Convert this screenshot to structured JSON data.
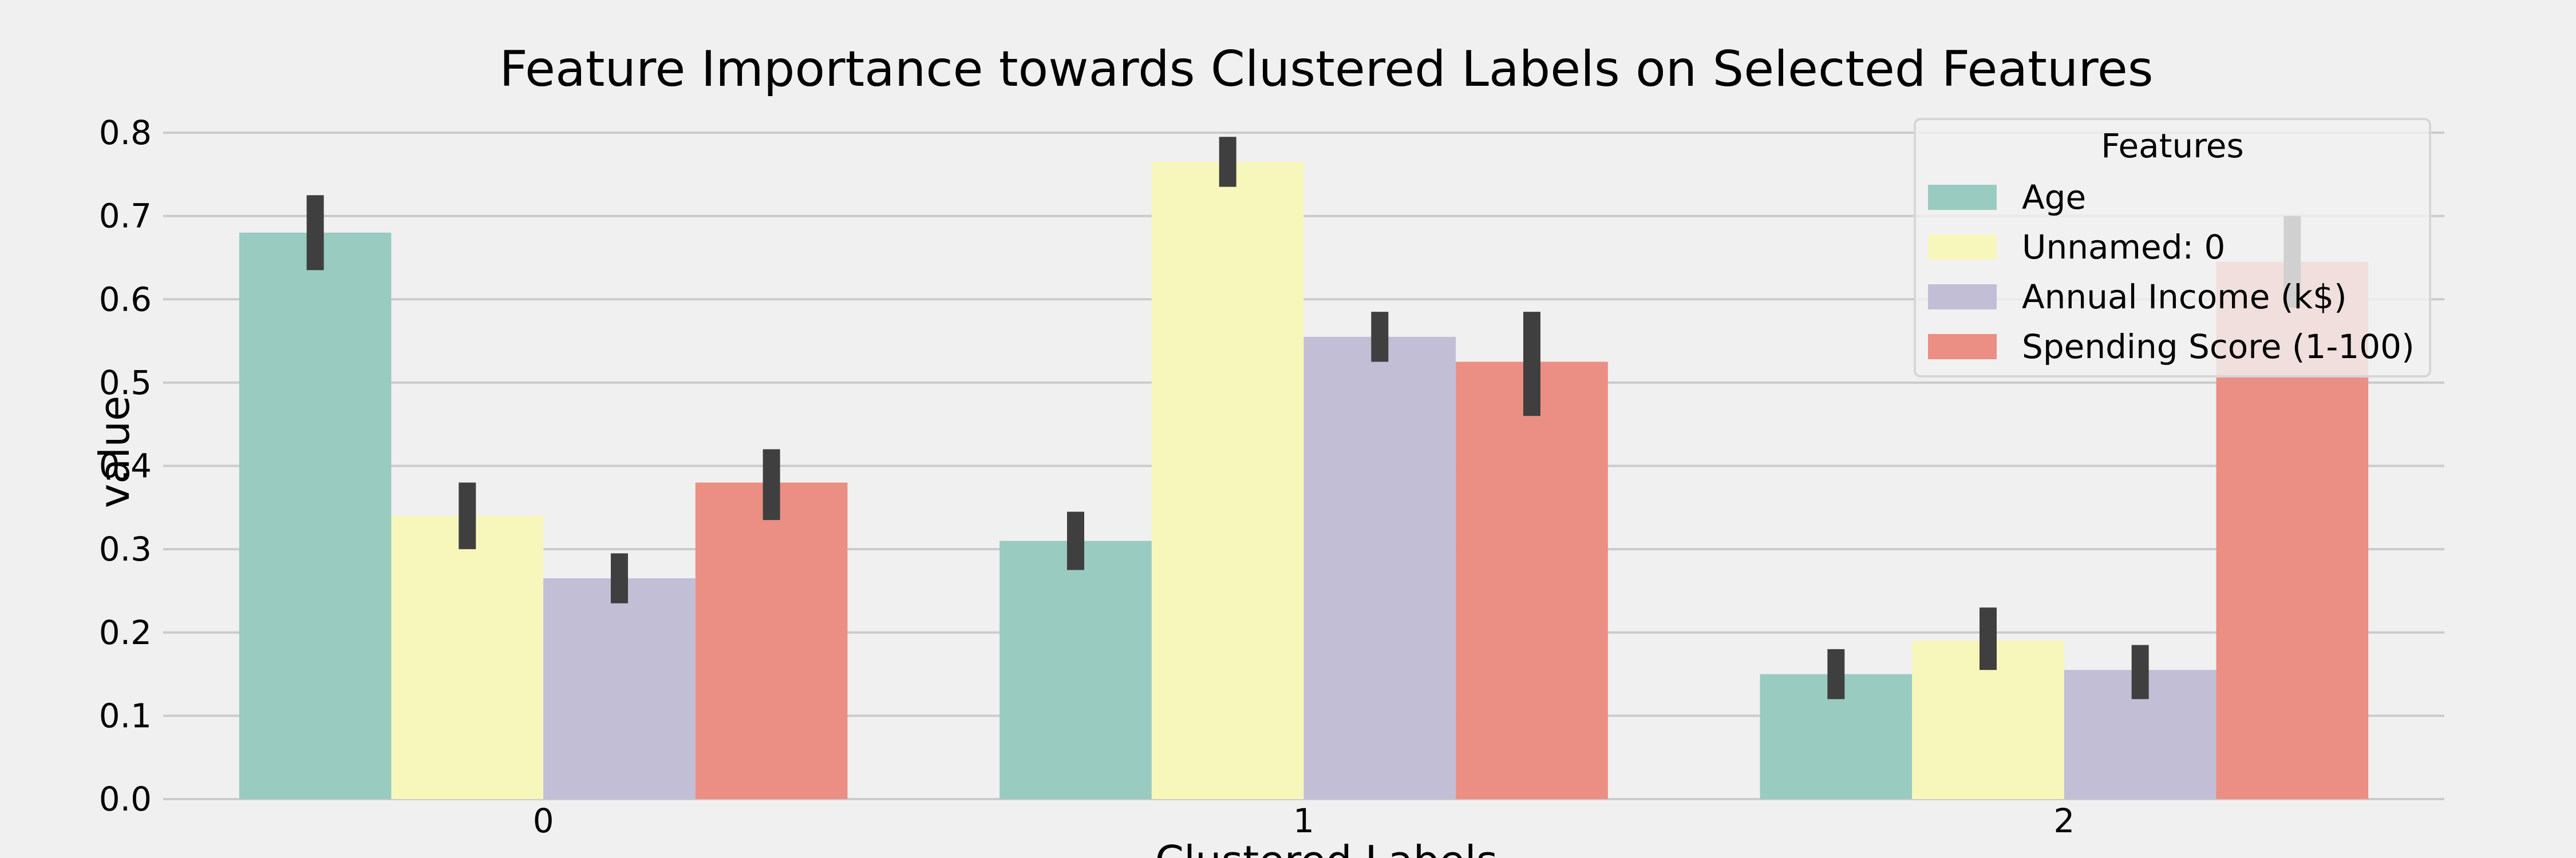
{
  "chart_data": {
    "type": "bar",
    "title": "Feature Importance towards Clustered Labels on Selected Features",
    "xlabel": "Clustered Labels",
    "ylabel": "value",
    "categories": [
      "0",
      "1",
      "2"
    ],
    "ylim": [
      0,
      0.8
    ],
    "yticks": [
      "0.0",
      "0.1",
      "0.2",
      "0.3",
      "0.4",
      "0.5",
      "0.6",
      "0.7",
      "0.8"
    ],
    "grid": true,
    "legend": {
      "title": "Features",
      "placement": "top-right"
    },
    "series": [
      {
        "name": "Age",
        "color": "#99cbc0",
        "values": [
          0.68,
          0.31,
          0.15
        ],
        "err_low": [
          0.635,
          0.275,
          0.12
        ],
        "err_high": [
          0.725,
          0.345,
          0.18
        ]
      },
      {
        "name": "Unnamed: 0",
        "color": "#f7f7bb",
        "values": [
          0.34,
          0.765,
          0.19
        ],
        "err_low": [
          0.3,
          0.735,
          0.155
        ],
        "err_high": [
          0.38,
          0.795,
          0.23
        ]
      },
      {
        "name": "Annual Income (k$)",
        "color": "#c1bed6",
        "values": [
          0.265,
          0.555,
          0.155
        ],
        "err_low": [
          0.235,
          0.525,
          0.12
        ],
        "err_high": [
          0.295,
          0.585,
          0.185
        ]
      },
      {
        "name": "Spending Score (1-100)",
        "color": "#eb8e83",
        "values": [
          0.38,
          0.525,
          0.645
        ],
        "err_low": [
          0.335,
          0.46,
          0.59
        ],
        "err_high": [
          0.42,
          0.585,
          0.7
        ]
      }
    ],
    "errorbar_color": "#3f3f3f"
  }
}
